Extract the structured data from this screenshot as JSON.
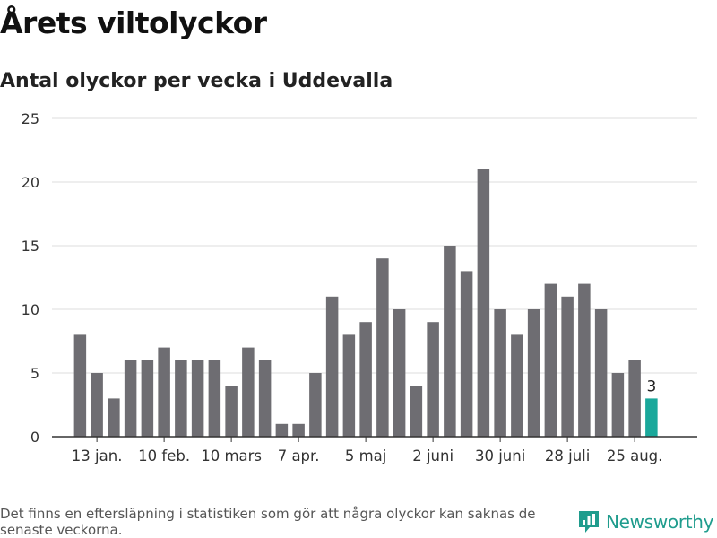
{
  "title": "Årets viltolyckor",
  "subtitle": "Antal olyckor per vecka i Uddevalla",
  "footnote": "Det finns en eftersläpning i statistiken som gör att några olyckor kan saknas de senaste veckorna.",
  "brand": {
    "name": "Newsworthy",
    "icon": "newsworthy-logo-icon",
    "color": "#1f9c8d"
  },
  "colors": {
    "bar": "#6e6d72",
    "highlight": "#1aa89b",
    "grid": "#dddddd",
    "axis": "#333333"
  },
  "chart_data": {
    "type": "bar",
    "title": "Årets viltolyckor",
    "subtitle": "Antal olyckor per vecka i Uddevalla",
    "xlabel": "",
    "ylabel": "",
    "ylim": [
      0,
      25
    ],
    "yticks": [
      0,
      5,
      10,
      15,
      20,
      25
    ],
    "grid": true,
    "values": [
      8,
      5,
      3,
      6,
      6,
      7,
      6,
      6,
      6,
      4,
      7,
      6,
      1,
      1,
      5,
      11,
      8,
      9,
      14,
      10,
      4,
      9,
      15,
      13,
      21,
      10,
      8,
      10,
      12,
      11,
      12,
      10,
      5,
      6,
      3
    ],
    "xticks": [
      {
        "index": 1,
        "label": "13 jan."
      },
      {
        "index": 5,
        "label": "10 feb."
      },
      {
        "index": 9,
        "label": "10 mars"
      },
      {
        "index": 13,
        "label": "7 apr."
      },
      {
        "index": 17,
        "label": "5 maj"
      },
      {
        "index": 21,
        "label": "2 juni"
      },
      {
        "index": 25,
        "label": "30 juni"
      },
      {
        "index": 29,
        "label": "28 juli"
      },
      {
        "index": 33,
        "label": "25 aug."
      }
    ],
    "highlight": {
      "index": 34,
      "label": "3"
    }
  }
}
